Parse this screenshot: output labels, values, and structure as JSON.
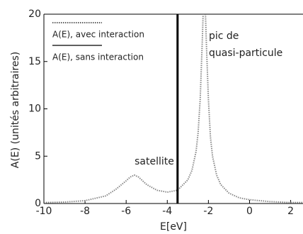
{
  "chart_data": {
    "type": "line",
    "x_label": "E[eV]",
    "y_label": "A(E) (unités arbitraires)",
    "xlim": [
      -10,
      2.6
    ],
    "ylim": [
      0,
      20
    ],
    "xticks": [
      -10,
      -8,
      -6,
      -4,
      -2,
      0,
      2
    ],
    "yticks": [
      0,
      5,
      10,
      15,
      20
    ],
    "grid": false,
    "legend": "top-left",
    "annotations": [
      "satellite",
      "pic de",
      "quasi-particule"
    ],
    "series": [
      {
        "name": "A(E), avec interaction",
        "color": "#888888",
        "dash": "dotted",
        "x": [
          -10,
          -9,
          -8,
          -7,
          -6.5,
          -6,
          -5.8,
          -5.6,
          -5.4,
          -5.2,
          -5,
          -4.5,
          -4,
          -3.5,
          -3,
          -2.8,
          -2.6,
          -2.5,
          -2.4,
          -2.3,
          -2.2,
          -2.1,
          -2,
          -1.9,
          -1.8,
          -1.6,
          -1.4,
          -1,
          -0.5,
          0,
          1,
          2,
          2.6
        ],
        "values": [
          0.1,
          0.15,
          0.3,
          0.8,
          1.5,
          2.4,
          2.8,
          3.0,
          2.8,
          2.4,
          2.0,
          1.4,
          1.2,
          1.4,
          2.5,
          3.5,
          5.5,
          7.5,
          11,
          17,
          24,
          17,
          11,
          7,
          5,
          3,
          2,
          1.1,
          0.6,
          0.4,
          0.2,
          0.1,
          0.1
        ]
      },
      {
        "name": "A(E), sans interaction",
        "color": "#000000",
        "dash": "solid",
        "x": [
          -3.5,
          -3.5
        ],
        "values": [
          0,
          20
        ]
      }
    ]
  }
}
